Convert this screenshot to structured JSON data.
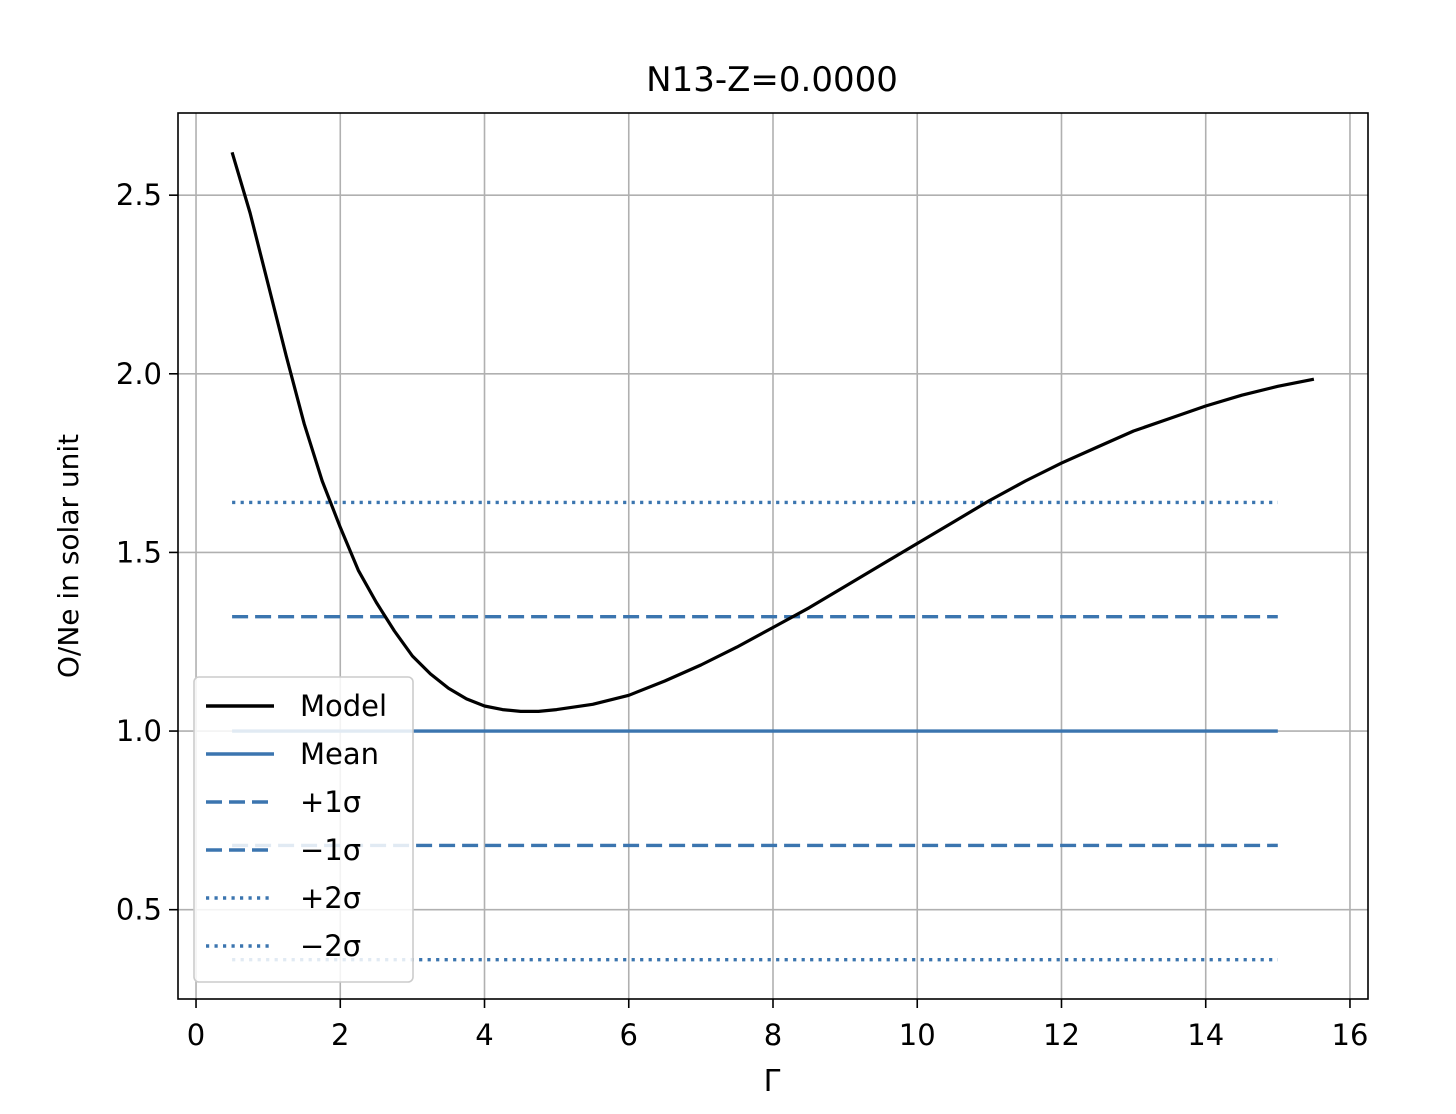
{
  "chart_data": {
    "type": "line",
    "title": "N13-Z=0.0000",
    "xlabel": "Γ",
    "ylabel": "O/Ne in solar unit",
    "xlim": [
      -0.25,
      16.25
    ],
    "ylim": [
      0.25,
      2.73
    ],
    "xticks": [
      0,
      2,
      4,
      6,
      8,
      10,
      12,
      14,
      16
    ],
    "yticks": [
      0.5,
      1.0,
      1.5,
      2.0,
      2.5
    ],
    "ytick_labels": [
      "0.5",
      "1.0",
      "1.5",
      "2.0",
      "2.5"
    ],
    "grid": true,
    "legend_position": "lower-left",
    "colors": {
      "model": "#000000",
      "reference": "#3b75af"
    },
    "series": [
      {
        "name": "Model",
        "style": "solid",
        "color": "#000000",
        "x": [
          0.5,
          0.75,
          1.0,
          1.25,
          1.5,
          1.75,
          2.0,
          2.25,
          2.5,
          2.75,
          3.0,
          3.25,
          3.5,
          3.75,
          4.0,
          4.25,
          4.5,
          4.75,
          5.0,
          5.5,
          6.0,
          6.5,
          7.0,
          7.5,
          8.0,
          8.5,
          9.0,
          9.5,
          10.0,
          10.5,
          11.0,
          11.5,
          12.0,
          12.5,
          13.0,
          13.5,
          14.0,
          14.5,
          15.0,
          15.5
        ],
        "y": [
          2.62,
          2.45,
          2.25,
          2.05,
          1.86,
          1.7,
          1.57,
          1.45,
          1.36,
          1.28,
          1.21,
          1.16,
          1.12,
          1.09,
          1.07,
          1.06,
          1.055,
          1.055,
          1.06,
          1.075,
          1.1,
          1.14,
          1.185,
          1.235,
          1.29,
          1.345,
          1.405,
          1.465,
          1.525,
          1.585,
          1.645,
          1.7,
          1.75,
          1.795,
          1.84,
          1.875,
          1.91,
          1.94,
          1.965,
          1.985
        ]
      },
      {
        "name": "Mean",
        "style": "solid",
        "color": "#3b75af",
        "x": [
          0.5,
          15.0
        ],
        "y": [
          1.0,
          1.0
        ]
      },
      {
        "name": "+1σ",
        "style": "dashed",
        "color": "#3b75af",
        "x": [
          0.5,
          15.0
        ],
        "y": [
          1.32,
          1.32
        ]
      },
      {
        "name": "−1σ",
        "style": "dashed",
        "color": "#3b75af",
        "x": [
          0.5,
          15.0
        ],
        "y": [
          0.68,
          0.68
        ]
      },
      {
        "name": "+2σ",
        "style": "dotted",
        "color": "#3b75af",
        "x": [
          0.5,
          15.0
        ],
        "y": [
          1.64,
          1.64
        ]
      },
      {
        "name": "−2σ",
        "style": "dotted",
        "color": "#3b75af",
        "x": [
          0.5,
          15.0
        ],
        "y": [
          0.36,
          0.36
        ]
      }
    ]
  }
}
